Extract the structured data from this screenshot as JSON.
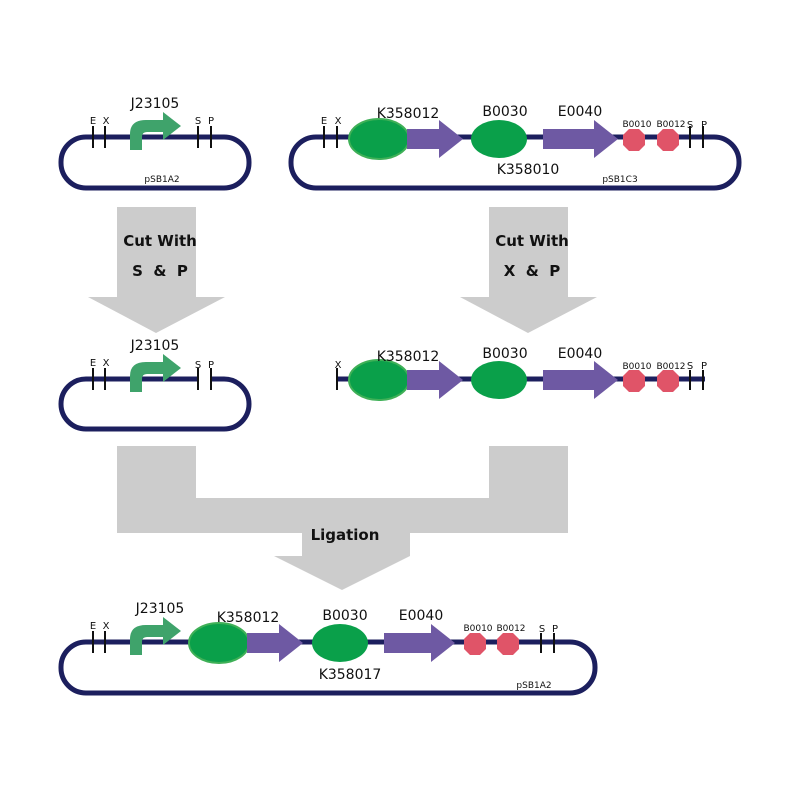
{
  "parts": {
    "promoter": "J23105",
    "rbs_reporter": "K358012",
    "rbs": "B0030",
    "gfp": "E0040",
    "term1": "B0010",
    "term2": "B0012",
    "composite_a": "K358010",
    "composite_b": "K358017"
  },
  "sites": {
    "e": "E",
    "x": "X",
    "s": "S",
    "p": "P"
  },
  "vectors": {
    "v1": "pSB1A2",
    "v2": "pSB1C3"
  },
  "steps": {
    "left_cut_line1": "Cut With",
    "left_cut_line2": "S  &  P",
    "right_cut_line1": "Cut With",
    "right_cut_line2": "X  &  P",
    "ligation": "Ligation"
  },
  "colors": {
    "backbone": "#1c1f5e",
    "promoter": "#3fa36b",
    "ellipse": "#0aa04a",
    "cds": "#6e59a3",
    "terminator": "#e05468",
    "arrow_gray": "#cccccc"
  }
}
